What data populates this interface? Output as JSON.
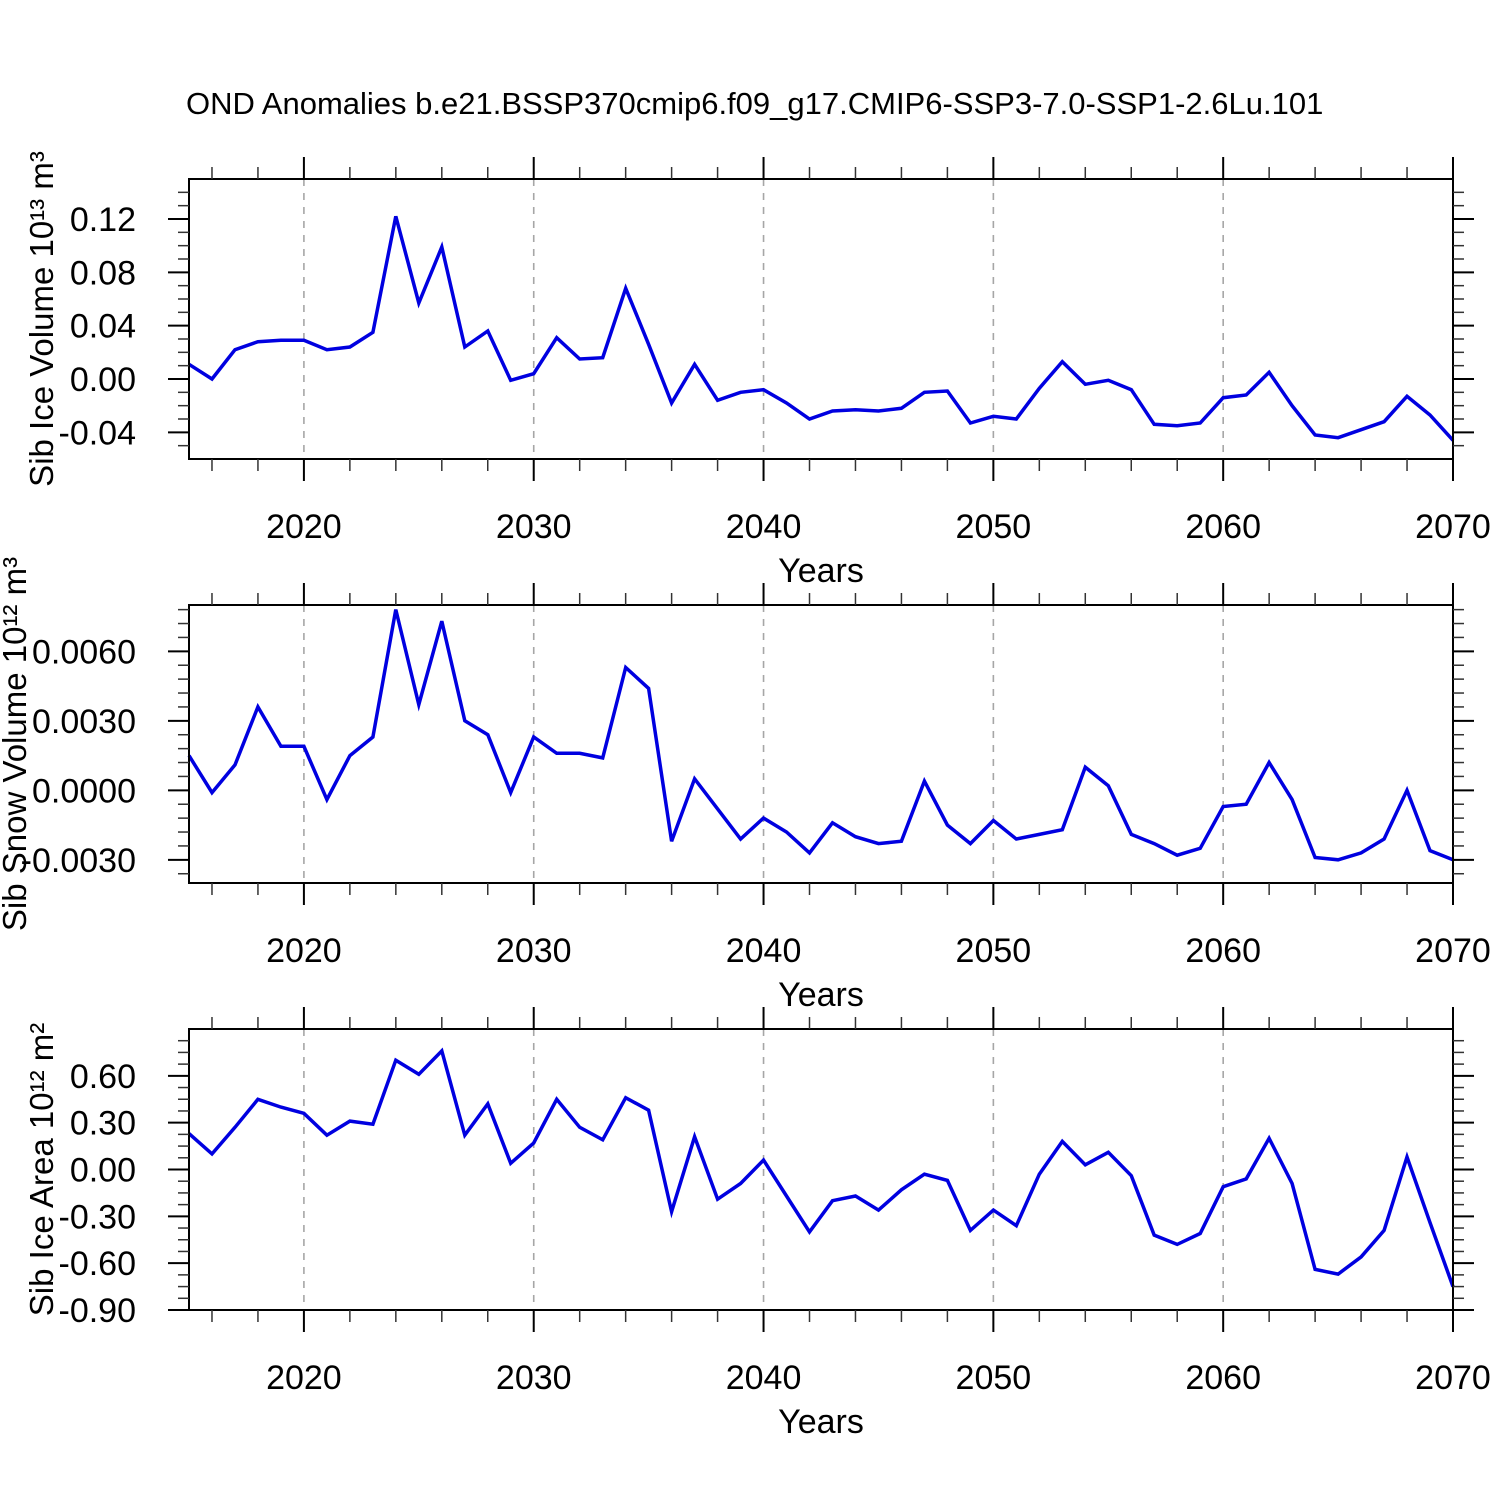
{
  "title": "OND Anomalies b.e21.BSSP370cmip6.f09_g17.CMIP6-SSP3-7.0-SSP1-2.6Lu.101",
  "styles": {
    "line_color": "#0000e0",
    "grid_color": "#a6a6a6",
    "axis_color": "#000000",
    "minor_tick_color": "#333333",
    "background": "#ffffff"
  },
  "chart_data": [
    {
      "type": "line",
      "panel": "Sib Ice Volume",
      "ylabel": "Sib Ice Volume 10¹³ m³",
      "xlabel": "Years",
      "x_start": 2015,
      "x_end": 2070,
      "ylim": [
        -0.06,
        0.15
      ],
      "yminor_step": 0.01,
      "xminor_step": 2,
      "grid_years": [
        2020,
        2030,
        2040,
        2050,
        2060
      ],
      "xticks": [
        {
          "value": 2020,
          "label": "2020"
        },
        {
          "value": 2030,
          "label": "2030"
        },
        {
          "value": 2040,
          "label": "2040"
        },
        {
          "value": 2050,
          "label": "2050"
        },
        {
          "value": 2060,
          "label": "2060"
        },
        {
          "value": 2070,
          "label": "2070"
        }
      ],
      "yticks": [
        {
          "value": 0.12,
          "label": "0.12"
        },
        {
          "value": 0.08,
          "label": "0.08"
        },
        {
          "value": 0.04,
          "label": "0.04"
        },
        {
          "value": 0.0,
          "label": "0.00"
        },
        {
          "value": -0.04,
          "label": "-0.04"
        }
      ],
      "values": [
        0.011,
        0.0,
        0.022,
        0.028,
        0.029,
        0.029,
        0.022,
        0.024,
        0.035,
        0.122,
        0.057,
        0.099,
        0.024,
        0.036,
        -0.001,
        0.004,
        0.031,
        0.015,
        0.016,
        0.068,
        0.026,
        -0.018,
        0.011,
        -0.016,
        -0.01,
        -0.008,
        -0.018,
        -0.03,
        -0.024,
        -0.023,
        -0.024,
        -0.022,
        -0.01,
        -0.009,
        -0.033,
        -0.028,
        -0.03,
        -0.007,
        0.013,
        -0.004,
        -0.001,
        -0.008,
        -0.034,
        -0.035,
        -0.033,
        -0.014,
        -0.012,
        0.005,
        -0.02,
        -0.042,
        -0.044,
        -0.038,
        -0.032,
        -0.013,
        -0.027,
        -0.046
      ]
    },
    {
      "type": "line",
      "panel": "Sib Snow Volume",
      "ylabel": "Sib Snow Volume 10¹² m³",
      "ylabel_clipped": true,
      "xlabel": "Years",
      "x_start": 2015,
      "x_end": 2070,
      "ylim": [
        -0.004,
        0.008
      ],
      "yminor_step": 0.0006,
      "xminor_step": 2,
      "grid_years": [
        2020,
        2030,
        2040,
        2050,
        2060
      ],
      "xticks": [
        {
          "value": 2020,
          "label": "2020"
        },
        {
          "value": 2030,
          "label": "2030"
        },
        {
          "value": 2040,
          "label": "2040"
        },
        {
          "value": 2050,
          "label": "2050"
        },
        {
          "value": 2060,
          "label": "2060"
        },
        {
          "value": 2070,
          "label": "2070"
        }
      ],
      "yticks": [
        {
          "value": 0.006,
          "label": "0.0060"
        },
        {
          "value": 0.003,
          "label": "0.0030"
        },
        {
          "value": 0.0,
          "label": "0.0000"
        },
        {
          "value": -0.003,
          "label": "-0.0030"
        }
      ],
      "values": [
        0.0015,
        -0.0001,
        0.0011,
        0.0036,
        0.0019,
        0.0019,
        -0.0004,
        0.0015,
        0.0023,
        0.0078,
        0.0037,
        0.0073,
        0.003,
        0.0024,
        -0.0001,
        0.0023,
        0.0016,
        0.0016,
        0.0014,
        0.0053,
        0.0044,
        -0.0022,
        0.0005,
        -0.0008,
        -0.0021,
        -0.0012,
        -0.0018,
        -0.0027,
        -0.0014,
        -0.002,
        -0.0023,
        -0.0022,
        0.0004,
        -0.0015,
        -0.0023,
        -0.0013,
        -0.0021,
        -0.0019,
        -0.0017,
        0.001,
        0.0002,
        -0.0019,
        -0.0023,
        -0.0028,
        -0.0025,
        -0.0007,
        -0.0006,
        0.0012,
        -0.0004,
        -0.0029,
        -0.003,
        -0.0027,
        -0.0021,
        0.0,
        -0.0026,
        -0.003
      ]
    },
    {
      "type": "line",
      "panel": "Sib Ice Area",
      "ylabel": "Sib Ice Area 10¹² m²",
      "xlabel": "Years",
      "x_start": 2015,
      "x_end": 2070,
      "ylim": [
        -0.9,
        0.9
      ],
      "yminor_step": 0.075,
      "xminor_step": 2,
      "grid_years": [
        2020,
        2030,
        2040,
        2050,
        2060
      ],
      "xticks": [
        {
          "value": 2020,
          "label": "2020"
        },
        {
          "value": 2030,
          "label": "2030"
        },
        {
          "value": 2040,
          "label": "2040"
        },
        {
          "value": 2050,
          "label": "2050"
        },
        {
          "value": 2060,
          "label": "2060"
        },
        {
          "value": 2070,
          "label": "2070"
        }
      ],
      "yticks": [
        {
          "value": 0.6,
          "label": "0.60"
        },
        {
          "value": 0.3,
          "label": "0.30"
        },
        {
          "value": 0.0,
          "label": "0.00"
        },
        {
          "value": -0.3,
          "label": "-0.30"
        },
        {
          "value": -0.6,
          "label": "-0.60"
        },
        {
          "value": -0.9,
          "label": "-0.90"
        }
      ],
      "values": [
        0.23,
        0.1,
        0.27,
        0.45,
        0.4,
        0.36,
        0.22,
        0.31,
        0.29,
        0.7,
        0.61,
        0.76,
        0.22,
        0.42,
        0.04,
        0.17,
        0.45,
        0.27,
        0.19,
        0.46,
        0.38,
        -0.27,
        0.21,
        -0.19,
        -0.09,
        0.06,
        -0.17,
        -0.4,
        -0.2,
        -0.17,
        -0.26,
        -0.13,
        -0.03,
        -0.07,
        -0.39,
        -0.26,
        -0.36,
        -0.03,
        0.18,
        0.03,
        0.11,
        -0.04,
        -0.42,
        -0.48,
        -0.41,
        -0.11,
        -0.06,
        0.2,
        -0.09,
        -0.64,
        -0.67,
        -0.56,
        -0.39,
        0.08,
        -0.34,
        -0.75
      ]
    }
  ]
}
